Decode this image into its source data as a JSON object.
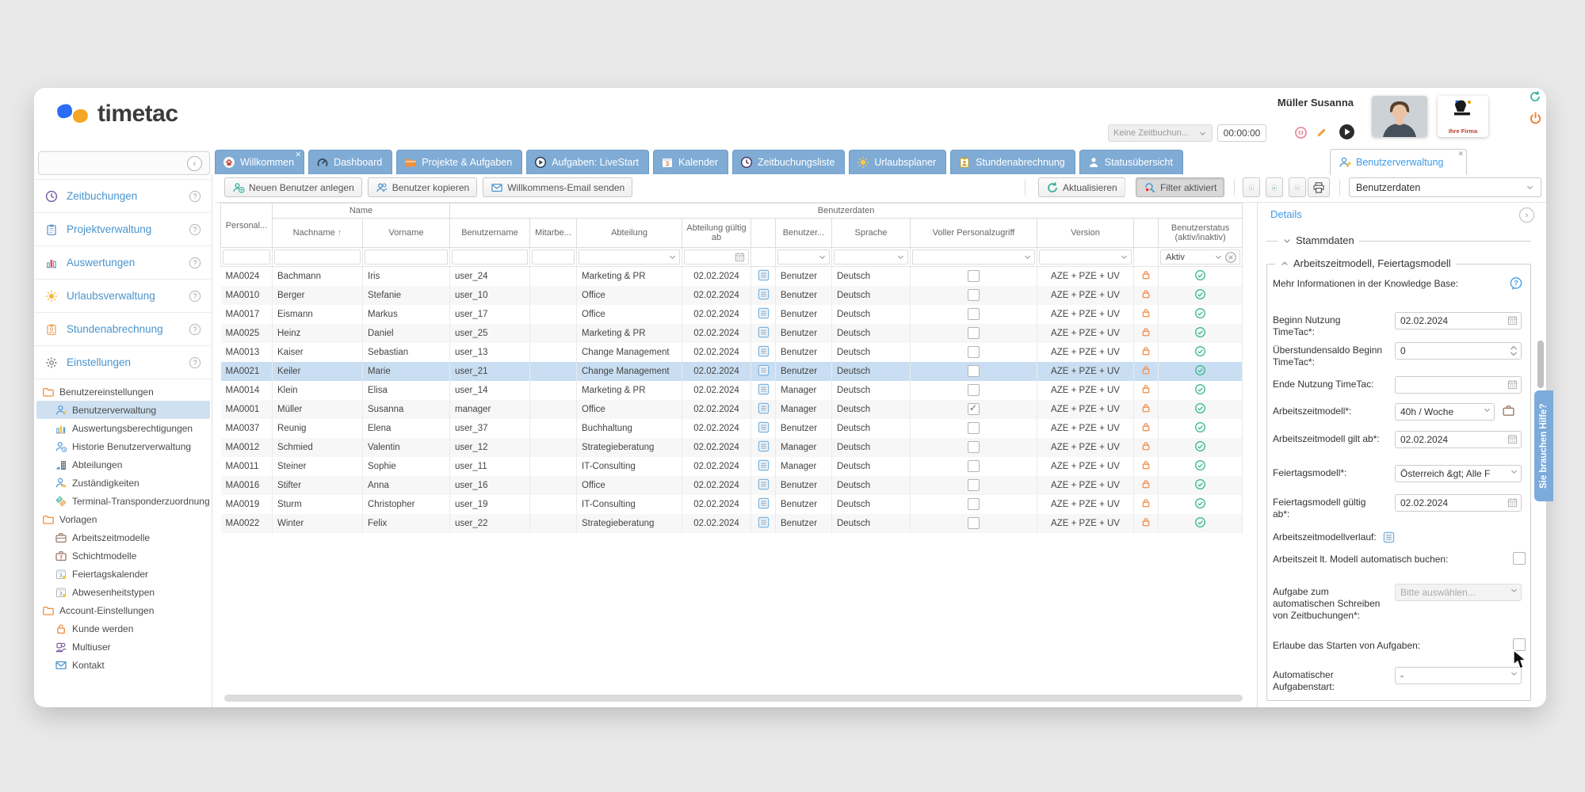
{
  "app": {
    "brand": "timetac"
  },
  "header": {
    "user_name": "Müller Susanna",
    "time_entry_label": "Keine Zeitbuchun...",
    "timer_value": "00:00:00",
    "company_logo_caption": "Ihre Firma"
  },
  "tabs": [
    {
      "label": "Willkommen",
      "icon": "home",
      "closable": true
    },
    {
      "label": "Dashboard",
      "icon": "dashboard",
      "closable": false
    },
    {
      "label": "Projekte & Aufgaben",
      "icon": "folder",
      "closable": false
    },
    {
      "label": "Aufgaben: LiveStart",
      "icon": "play-circle",
      "closable": false
    },
    {
      "label": "Kalender",
      "icon": "calendar",
      "closable": false
    },
    {
      "label": "Zeitbuchungsliste",
      "icon": "clock",
      "closable": false
    },
    {
      "label": "Urlaubsplaner",
      "icon": "sun",
      "closable": false
    },
    {
      "label": "Stundenabrechnung",
      "icon": "clipboard",
      "closable": false
    },
    {
      "label": "Statusübersicht",
      "icon": "person",
      "closable": false
    }
  ],
  "active_tab": {
    "label": "Benutzerverwaltung",
    "icon": "person-edit",
    "closable": true
  },
  "toolbar": {
    "left_buttons": [
      {
        "label": "Neuen Benutzer anlegen",
        "icon": "user-plus"
      },
      {
        "label": "Benutzer kopieren",
        "icon": "users"
      },
      {
        "label": "Willkommens-Email senden",
        "icon": "mail"
      }
    ],
    "refresh_label": "Aktualisieren",
    "filter_label": "Filter aktiviert",
    "export_letters": [
      "x",
      "E",
      "C"
    ],
    "view_select": "Benutzerdaten"
  },
  "sidebar": {
    "items": [
      {
        "label": "Zeitbuchungen",
        "icon": "clock-purple"
      },
      {
        "label": "Projektverwaltung",
        "icon": "clipboard-blue"
      },
      {
        "label": "Auswertungen",
        "icon": "chart"
      },
      {
        "label": "Urlaubsverwaltung",
        "icon": "sun-orange"
      },
      {
        "label": "Stundenabrechnung",
        "icon": "clipboard-person"
      },
      {
        "label": "Einstellungen",
        "icon": "gear"
      }
    ],
    "tree": [
      {
        "label": "Benutzereinstellungen",
        "icon": "folder-o",
        "level": 0,
        "selected": false
      },
      {
        "label": "Benutzerverwaltung",
        "icon": "person-blue",
        "level": 1,
        "selected": true
      },
      {
        "label": "Auswertungsberechtigungen",
        "icon": "chart-small",
        "level": 1,
        "selected": false
      },
      {
        "label": "Historie Benutzerverwaltung",
        "icon": "person-history",
        "level": 1,
        "selected": false
      },
      {
        "label": "Abteilungen",
        "icon": "building",
        "level": 1,
        "selected": false
      },
      {
        "label": "Zuständigkeiten",
        "icon": "person-key",
        "level": 1,
        "selected": false
      },
      {
        "label": "Terminal-Transponderzuordnung",
        "icon": "tags",
        "level": 1,
        "selected": false
      },
      {
        "label": "Vorlagen",
        "icon": "folder-o",
        "level": 0,
        "selected": false
      },
      {
        "label": "Arbeitszeitmodelle",
        "icon": "briefcase",
        "level": 1,
        "selected": false
      },
      {
        "label": "Schichtmodelle",
        "icon": "briefcase-7",
        "level": 1,
        "selected": false
      },
      {
        "label": "Feiertagskalender",
        "icon": "calendar-3",
        "level": 1,
        "selected": false
      },
      {
        "label": "Abwesenheitstypen",
        "icon": "calendar-3",
        "level": 1,
        "selected": false
      },
      {
        "label": "Account-Einstellungen",
        "icon": "folder-o",
        "level": 0,
        "selected": false
      },
      {
        "label": "Kunde werden",
        "icon": "lock",
        "level": 1,
        "selected": false
      },
      {
        "label": "Multiuser",
        "icon": "people",
        "level": 1,
        "selected": false
      },
      {
        "label": "Kontakt",
        "icon": "mail-blue",
        "level": 1,
        "selected": false
      }
    ]
  },
  "table": {
    "group_headers": {
      "name": "Name",
      "benutzerdaten": "Benutzerdaten"
    },
    "columns": [
      "Personal...",
      "Nachname",
      "Vorname",
      "Benutzername",
      "Mitarbe...",
      "Abteilung",
      "Abteilung gültig ab",
      "",
      "Benutzer...",
      "Sprache",
      "Voller Personalzugriff",
      "Version",
      "",
      "Benutzerstatus (aktiv/inaktiv)"
    ],
    "sort": {
      "column": "Nachname",
      "direction": "asc"
    },
    "filters": {
      "status_value": "Aktiv"
    },
    "rows": [
      {
        "personalnr": "MA0024",
        "nachname": "Bachmann",
        "vorname": "Iris",
        "benutzername": "user_24",
        "abteilung": "Marketing & PR",
        "gueltig_ab": "02.02.2024",
        "rolle": "Benutzer",
        "sprache": "Deutsch",
        "voller_personalzugriff": false,
        "version": "AZE + PZE + UV",
        "selected": false
      },
      {
        "personalnr": "MA0010",
        "nachname": "Berger",
        "vorname": "Stefanie",
        "benutzername": "user_10",
        "abteilung": "Office",
        "gueltig_ab": "02.02.2024",
        "rolle": "Benutzer",
        "sprache": "Deutsch",
        "voller_personalzugriff": false,
        "version": "AZE + PZE + UV",
        "selected": false
      },
      {
        "personalnr": "MA0017",
        "nachname": "Eismann",
        "vorname": "Markus",
        "benutzername": "user_17",
        "abteilung": "Office",
        "gueltig_ab": "02.02.2024",
        "rolle": "Benutzer",
        "sprache": "Deutsch",
        "voller_personalzugriff": false,
        "version": "AZE + PZE + UV",
        "selected": false
      },
      {
        "personalnr": "MA0025",
        "nachname": "Heinz",
        "vorname": "Daniel",
        "benutzername": "user_25",
        "abteilung": "Marketing & PR",
        "gueltig_ab": "02.02.2024",
        "rolle": "Benutzer",
        "sprache": "Deutsch",
        "voller_personalzugriff": false,
        "version": "AZE + PZE + UV",
        "selected": false
      },
      {
        "personalnr": "MA0013",
        "nachname": "Kaiser",
        "vorname": "Sebastian",
        "benutzername": "user_13",
        "abteilung": "Change Management",
        "gueltig_ab": "02.02.2024",
        "rolle": "Benutzer",
        "sprache": "Deutsch",
        "voller_personalzugriff": false,
        "version": "AZE + PZE + UV",
        "selected": false
      },
      {
        "personalnr": "MA0021",
        "nachname": "Keiler",
        "vorname": "Marie",
        "benutzername": "user_21",
        "abteilung": "Change Management",
        "gueltig_ab": "02.02.2024",
        "rolle": "Benutzer",
        "sprache": "Deutsch",
        "voller_personalzugriff": false,
        "version": "AZE + PZE + UV",
        "selected": true
      },
      {
        "personalnr": "MA0014",
        "nachname": "Klein",
        "vorname": "Elisa",
        "benutzername": "user_14",
        "abteilung": "Marketing & PR",
        "gueltig_ab": "02.02.2024",
        "rolle": "Manager",
        "sprache": "Deutsch",
        "voller_personalzugriff": false,
        "version": "AZE + PZE + UV",
        "selected": false
      },
      {
        "personalnr": "MA0001",
        "nachname": "Müller",
        "vorname": "Susanna",
        "benutzername": "manager",
        "abteilung": "Office",
        "gueltig_ab": "02.02.2024",
        "rolle": "Manager",
        "sprache": "Deutsch",
        "voller_personalzugriff": true,
        "version": "AZE + PZE + UV",
        "selected": false
      },
      {
        "personalnr": "MA0037",
        "nachname": "Reunig",
        "vorname": "Elena",
        "benutzername": "user_37",
        "abteilung": "Buchhaltung",
        "gueltig_ab": "02.02.2024",
        "rolle": "Benutzer",
        "sprache": "Deutsch",
        "voller_personalzugriff": false,
        "version": "AZE + PZE + UV",
        "selected": false
      },
      {
        "personalnr": "MA0012",
        "nachname": "Schmied",
        "vorname": "Valentin",
        "benutzername": "user_12",
        "abteilung": "Strategieberatung",
        "gueltig_ab": "02.02.2024",
        "rolle": "Manager",
        "sprache": "Deutsch",
        "voller_personalzugriff": false,
        "version": "AZE + PZE + UV",
        "selected": false
      },
      {
        "personalnr": "MA0011",
        "nachname": "Steiner",
        "vorname": "Sophie",
        "benutzername": "user_11",
        "abteilung": "IT-Consulting",
        "gueltig_ab": "02.02.2024",
        "rolle": "Manager",
        "sprache": "Deutsch",
        "voller_personalzugriff": false,
        "version": "AZE + PZE + UV",
        "selected": false
      },
      {
        "personalnr": "MA0016",
        "nachname": "Stifter",
        "vorname": "Anna",
        "benutzername": "user_16",
        "abteilung": "Office",
        "gueltig_ab": "02.02.2024",
        "rolle": "Benutzer",
        "sprache": "Deutsch",
        "voller_personalzugriff": false,
        "version": "AZE + PZE + UV",
        "selected": false
      },
      {
        "personalnr": "MA0019",
        "nachname": "Sturm",
        "vorname": "Christopher",
        "benutzername": "user_19",
        "abteilung": "IT-Consulting",
        "gueltig_ab": "02.02.2024",
        "rolle": "Benutzer",
        "sprache": "Deutsch",
        "voller_personalzugriff": false,
        "version": "AZE + PZE + UV",
        "selected": false
      },
      {
        "personalnr": "MA0022",
        "nachname": "Winter",
        "vorname": "Felix",
        "benutzername": "user_22",
        "abteilung": "Strategieberatung",
        "gueltig_ab": "02.02.2024",
        "rolle": "Benutzer",
        "sprache": "Deutsch",
        "voller_personalzugriff": false,
        "version": "AZE + PZE + UV",
        "selected": false
      }
    ]
  },
  "details": {
    "title": "Details",
    "sections": {
      "stammdaten": "Stammdaten",
      "arbeitszeit": "Arbeitszeitmodell, Feiertagsmodell"
    },
    "knowledge_line": "Mehr Informationen in der Knowledge Base:",
    "fields": [
      {
        "label": "Beginn Nutzung TimeTac*:",
        "value": "02.02.2024",
        "control": "date"
      },
      {
        "label": "Überstundensaldo Beginn TimeTac*:",
        "value": "0",
        "control": "spinner"
      },
      {
        "label": "Ende Nutzung TimeTac:",
        "value": "",
        "control": "date"
      },
      {
        "label": "Arbeitszeitmodell*:",
        "value": "40h / Woche",
        "control": "select",
        "extra_icon": "briefcase-sm"
      },
      {
        "label": "Arbeitszeitmodell gilt ab*:",
        "value": "02.02.2024",
        "control": "date"
      },
      {
        "label": "Feiertagsmodell*:",
        "value": "Österreich &gt; Alle F",
        "control": "select"
      },
      {
        "label": "Feiertagsmodell gültig ab*:",
        "value": "02.02.2024",
        "control": "date"
      },
      {
        "label": "Arbeitszeitmodellverlauf:",
        "control": "note-button"
      },
      {
        "label": "Arbeitszeit lt. Modell automatisch buchen:",
        "control": "checkbox",
        "checked": false
      },
      {
        "label": "Aufgabe zum automatischen Schreiben von Zeitbuchungen*:",
        "value": "Bitte auswählen...",
        "control": "select",
        "disabled": true
      },
      {
        "label": "Erlaube das Starten von Aufgaben:",
        "control": "checkbox",
        "checked": false
      },
      {
        "label": "Automatischer Aufgabenstart:",
        "value": "-",
        "control": "select"
      }
    ],
    "help_tab": "Sie brauchen Hilfe?"
  }
}
